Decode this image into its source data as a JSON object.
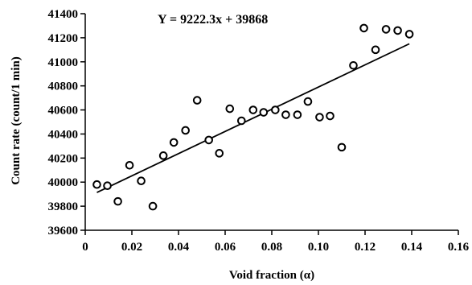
{
  "chart_data": {
    "type": "scatter",
    "title": "",
    "xlabel": "Void fraction (α)",
    "ylabel": "Count rate (count/1 min)",
    "xlim": [
      0,
      0.16
    ],
    "ylim": [
      39600,
      41400
    ],
    "xticks": [
      0,
      0.02,
      0.04,
      0.06,
      0.08,
      0.1,
      0.12,
      0.14,
      0.16
    ],
    "xtick_labels": [
      "0",
      "0.02",
      "0.04",
      "0.06",
      "0.08",
      "0.10",
      "0.12",
      "0.14",
      "0.16"
    ],
    "yticks": [
      39600,
      39800,
      40000,
      40200,
      40400,
      40600,
      40800,
      41000,
      41200,
      41400
    ],
    "ytick_labels": [
      "39600",
      "39800",
      "40000",
      "40200",
      "40400",
      "40600",
      "40800",
      "41000",
      "41200",
      "41400"
    ],
    "grid": false,
    "legend": "none",
    "annotation": "Y = 9222.3x + 39868",
    "trendline": {
      "slope": 9222.3,
      "intercept": 39868,
      "x_range": [
        0.005,
        0.139
      ]
    },
    "points": [
      {
        "x": 0.005,
        "y": 39980
      },
      {
        "x": 0.0095,
        "y": 39970
      },
      {
        "x": 0.014,
        "y": 39840
      },
      {
        "x": 0.019,
        "y": 40140
      },
      {
        "x": 0.024,
        "y": 40010
      },
      {
        "x": 0.029,
        "y": 39800
      },
      {
        "x": 0.0335,
        "y": 40220
      },
      {
        "x": 0.038,
        "y": 40330
      },
      {
        "x": 0.043,
        "y": 40430
      },
      {
        "x": 0.048,
        "y": 40680
      },
      {
        "x": 0.053,
        "y": 40350
      },
      {
        "x": 0.0575,
        "y": 40240
      },
      {
        "x": 0.062,
        "y": 40610
      },
      {
        "x": 0.067,
        "y": 40510
      },
      {
        "x": 0.072,
        "y": 40600
      },
      {
        "x": 0.0765,
        "y": 40580
      },
      {
        "x": 0.0815,
        "y": 40600
      },
      {
        "x": 0.086,
        "y": 40560
      },
      {
        "x": 0.091,
        "y": 40560
      },
      {
        "x": 0.0955,
        "y": 40670
      },
      {
        "x": 0.1005,
        "y": 40540
      },
      {
        "x": 0.105,
        "y": 40550
      },
      {
        "x": 0.11,
        "y": 40290
      },
      {
        "x": 0.115,
        "y": 40970
      },
      {
        "x": 0.1195,
        "y": 41280
      },
      {
        "x": 0.1245,
        "y": 41100
      },
      {
        "x": 0.129,
        "y": 41270
      },
      {
        "x": 0.134,
        "y": 41260
      },
      {
        "x": 0.139,
        "y": 41230
      }
    ],
    "colors": {
      "marker": "#000000",
      "line": "#000000",
      "background": "#ffffff"
    }
  }
}
